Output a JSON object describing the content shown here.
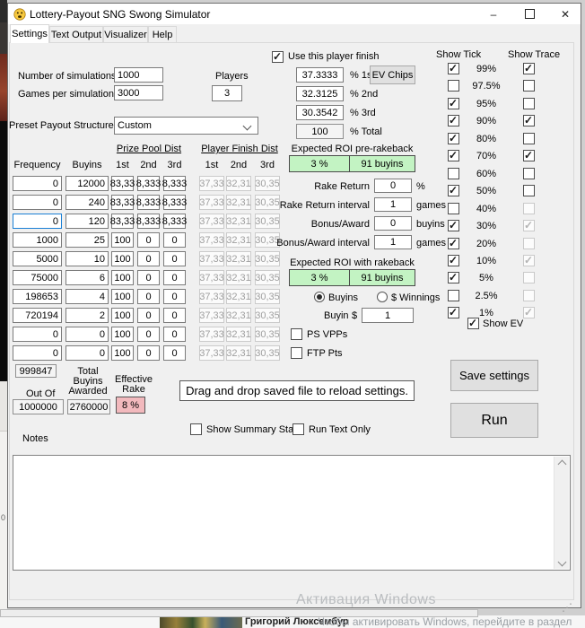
{
  "window": {
    "title": "Lottery-Payout SNG Swong Simulator",
    "minimize": "–",
    "close": "✕"
  },
  "tabs": [
    "Settings",
    "Text Output",
    "Visualizer",
    "Help"
  ],
  "top": {
    "num_sims_label": "Number of simulations",
    "num_sims_value": "1000",
    "games_label": "Games per simulation",
    "games_value": "3000",
    "players_label": "Players",
    "players_value": "3",
    "use_finish_label": "Use this player finish",
    "use_finish_checked": true,
    "finish_fields": [
      {
        "value": "37.3333",
        "label": "% 1st"
      },
      {
        "value": "32.3125",
        "label": "% 2nd"
      },
      {
        "value": "30.3542",
        "label": "% 3rd"
      },
      {
        "value": "100",
        "label": "% Total"
      }
    ],
    "ev_chips_label": "EV Chips",
    "preset_label": "Preset Payout Structures",
    "preset_value": "Custom"
  },
  "ticks": {
    "show_tick_header": "Show Tick",
    "show_trace_header": "Show Trace",
    "rows": [
      {
        "label": "99%",
        "tick": true,
        "trace": true,
        "trace_disabled": false
      },
      {
        "label": "97.5%",
        "tick": false,
        "trace": false,
        "trace_disabled": false
      },
      {
        "label": "95%",
        "tick": true,
        "trace": false,
        "trace_disabled": false
      },
      {
        "label": "90%",
        "tick": true,
        "trace": true,
        "trace_disabled": false
      },
      {
        "label": "80%",
        "tick": true,
        "trace": false,
        "trace_disabled": false
      },
      {
        "label": "70%",
        "tick": true,
        "trace": true,
        "trace_disabled": false
      },
      {
        "label": "60%",
        "tick": false,
        "trace": false,
        "trace_disabled": false
      },
      {
        "label": "50%",
        "tick": true,
        "trace": false,
        "trace_disabled": false
      },
      {
        "label": "40%",
        "tick": false,
        "trace": false,
        "trace_disabled": true
      },
      {
        "label": "30%",
        "tick": true,
        "trace": true,
        "trace_disabled": true
      },
      {
        "label": "20%",
        "tick": true,
        "trace": false,
        "trace_disabled": true
      },
      {
        "label": "10%",
        "tick": true,
        "trace": true,
        "trace_disabled": true
      },
      {
        "label": "5%",
        "tick": true,
        "trace": false,
        "trace_disabled": true
      },
      {
        "label": "2.5%",
        "tick": false,
        "trace": false,
        "trace_disabled": true
      },
      {
        "label": "1%",
        "tick": true,
        "trace": true,
        "trace_disabled": true
      }
    ],
    "show_ev_label": "Show EV",
    "show_ev_checked": true
  },
  "table": {
    "group_headers": [
      "Prize Pool Dist",
      "Player Finish Dist"
    ],
    "col_headers": [
      "Frequency",
      "Buyins",
      "1st",
      "2nd",
      "3rd",
      "1st",
      "2nd",
      "3rd"
    ],
    "rows": [
      {
        "frequency": "0",
        "buyins": "12000",
        "prize": [
          "83,33",
          "8,333",
          "8,333"
        ],
        "finish": [
          "37,33",
          "32,31",
          "30,35"
        ],
        "focused": false
      },
      {
        "frequency": "0",
        "buyins": "240",
        "prize": [
          "83,33",
          "8,333",
          "8,333"
        ],
        "finish": [
          "37,33",
          "32,31",
          "30,35"
        ],
        "focused": false
      },
      {
        "frequency": "0",
        "buyins": "120",
        "prize": [
          "83,33",
          "8,333",
          "8,333"
        ],
        "finish": [
          "37,33",
          "32,31",
          "30,35"
        ],
        "focused": true
      },
      {
        "frequency": "1000",
        "buyins": "25",
        "prize": [
          "100",
          "0",
          "0"
        ],
        "finish": [
          "37,33",
          "32,31",
          "30,35"
        ],
        "focused": false
      },
      {
        "frequency": "5000",
        "buyins": "10",
        "prize": [
          "100",
          "0",
          "0"
        ],
        "finish": [
          "37,33",
          "32,31",
          "30,35"
        ],
        "focused": false
      },
      {
        "frequency": "75000",
        "buyins": "6",
        "prize": [
          "100",
          "0",
          "0"
        ],
        "finish": [
          "37,33",
          "32,31",
          "30,35"
        ],
        "focused": false
      },
      {
        "frequency": "198653",
        "buyins": "4",
        "prize": [
          "100",
          "0",
          "0"
        ],
        "finish": [
          "37,33",
          "32,31",
          "30,35"
        ],
        "focused": false
      },
      {
        "frequency": "720194",
        "buyins": "2",
        "prize": [
          "100",
          "0",
          "0"
        ],
        "finish": [
          "37,33",
          "32,31",
          "30,35"
        ],
        "focused": false
      },
      {
        "frequency": "0",
        "buyins": "0",
        "prize": [
          "100",
          "0",
          "0"
        ],
        "finish": [
          "37,33",
          "32,31",
          "30,35"
        ],
        "focused": false
      },
      {
        "frequency": "0",
        "buyins": "0",
        "prize": [
          "100",
          "0",
          "0"
        ],
        "finish": [
          "37,33",
          "32,31",
          "30,35"
        ],
        "focused": false
      }
    ]
  },
  "roi": {
    "pre_label": "Expected ROI pre-rakeback",
    "pre_pct": "3 %",
    "pre_buyins": "91 buyins",
    "fields": [
      {
        "label": "Rake Return",
        "value": "0",
        "unit": "%"
      },
      {
        "label": "Rake Return interval",
        "value": "1",
        "unit": "games"
      },
      {
        "label": "Bonus/Award",
        "value": "0",
        "unit": "buyins"
      },
      {
        "label": "Bonus/Award interval",
        "value": "1",
        "unit": "games"
      }
    ],
    "post_label": "Expected ROI with rakeback",
    "post_pct": "3 %",
    "post_buyins": "91 buyins",
    "radio_buyins": "Buyins",
    "radio_buyins_checked": true,
    "radio_winnings": "$ Winnings",
    "radio_winnings_checked": false,
    "buyin_label": "Buyin",
    "buyin_currency": "$",
    "buyin_value": "1",
    "ps_vpps": "PS VPPs",
    "ps_vpps_checked": false,
    "ftp_pts": "FTP Pts",
    "ftp_pts_checked": false
  },
  "bottom": {
    "out_of_top": "999847",
    "out_of_label": "Out Of",
    "out_of_value": "1000000",
    "total_label_1": "Total",
    "total_label_2": "Buyins",
    "total_label_3": "Awarded",
    "total_value": "2760000",
    "rake_label_1": "Effective",
    "rake_label_2": "Rake",
    "rake_value": "8 %",
    "drag_text": "Drag and drop saved file to reload settings.",
    "show_summary": "Show Summary Stats",
    "show_summary_checked": false,
    "run_text_only": "Run Text Only",
    "run_text_only_checked": false,
    "save_button": "Save settings",
    "run_button": "Run",
    "notes_label": "Notes",
    "notes_value": ""
  },
  "watermark": {
    "line1": "Активация Windows",
    "line2": "Чтобы активировать Windows, перейдите в раздел"
  },
  "underlying": {
    "bottom_text": "Григорий Люксембур",
    "edge_fragment": "0"
  },
  "colors": {
    "green": "#c3f3c3",
    "pink": "#f2b9bd",
    "focus_blue": "#1a7fd4"
  }
}
